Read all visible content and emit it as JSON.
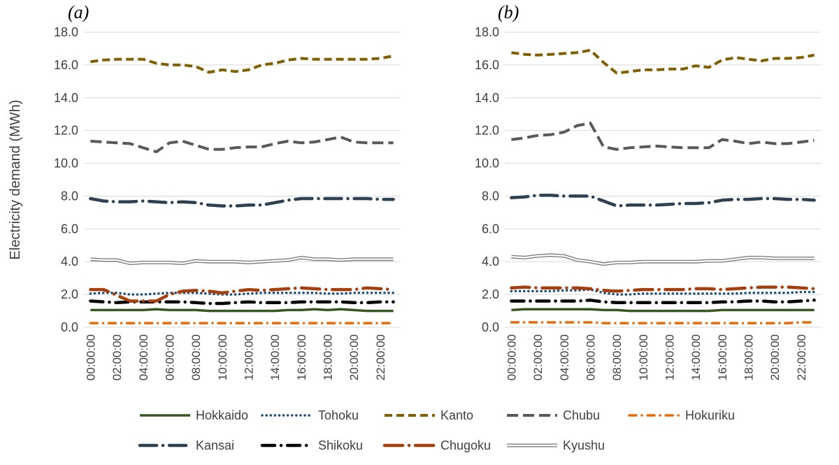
{
  "chart_data": [
    {
      "type": "line",
      "panel_label": "(a)",
      "ylabel": "Electricity demand (MWh)",
      "ylim": [
        0,
        18
      ],
      "y_ticks": [
        "0.0",
        "2.0",
        "4.0",
        "6.0",
        "8.0",
        "10.0",
        "12.0",
        "14.0",
        "16.0",
        "18.0"
      ],
      "x_ticks": [
        "00:00:00",
        "02:00:00",
        "04:00:00",
        "06:00:00",
        "08:00:00",
        "10:00:00",
        "12:00:00",
        "14:00:00",
        "16:00:00",
        "18:00:00",
        "20:00:00",
        "22:00:00"
      ],
      "x": [
        "00:00:00",
        "01:00:00",
        "02:00:00",
        "03:00:00",
        "04:00:00",
        "05:00:00",
        "06:00:00",
        "07:00:00",
        "08:00:00",
        "09:00:00",
        "10:00:00",
        "11:00:00",
        "12:00:00",
        "13:00:00",
        "14:00:00",
        "15:00:00",
        "16:00:00",
        "17:00:00",
        "18:00:00",
        "19:00:00",
        "20:00:00",
        "21:00:00",
        "22:00:00",
        "23:00:00"
      ],
      "grid": true,
      "series": [
        {
          "name": "Hokkaido",
          "values": [
            1.05,
            1.05,
            1.05,
            1.05,
            1.05,
            1.1,
            1.05,
            1.05,
            1.05,
            1.0,
            1.0,
            1.0,
            1.0,
            1.0,
            1.0,
            1.05,
            1.05,
            1.1,
            1.05,
            1.1,
            1.05,
            1.0,
            1.0,
            1.0
          ]
        },
        {
          "name": "Tohoku",
          "values": [
            2.05,
            2.1,
            2.1,
            2.0,
            2.0,
            2.05,
            2.1,
            2.1,
            2.1,
            2.05,
            2.0,
            2.0,
            2.05,
            2.1,
            2.1,
            2.1,
            2.1,
            2.1,
            2.05,
            2.05,
            2.1,
            2.1,
            2.1,
            2.1
          ]
        },
        {
          "name": "Kanto",
          "values": [
            16.2,
            16.3,
            16.35,
            16.35,
            16.35,
            16.1,
            16.0,
            16.0,
            15.9,
            15.55,
            15.7,
            15.6,
            15.7,
            16.0,
            16.1,
            16.3,
            16.4,
            16.35,
            16.35,
            16.35,
            16.35,
            16.35,
            16.4,
            16.55
          ]
        },
        {
          "name": "Chubu",
          "values": [
            11.35,
            11.3,
            11.25,
            11.2,
            10.95,
            10.7,
            11.25,
            11.35,
            11.1,
            10.85,
            10.85,
            10.95,
            11.0,
            11.0,
            11.2,
            11.35,
            11.25,
            11.3,
            11.45,
            11.6,
            11.3,
            11.25,
            11.25,
            11.25
          ]
        },
        {
          "name": "Hokuriku",
          "values": [
            0.25,
            0.25,
            0.25,
            0.25,
            0.25,
            0.25,
            0.25,
            0.25,
            0.25,
            0.25,
            0.25,
            0.25,
            0.25,
            0.25,
            0.25,
            0.25,
            0.25,
            0.25,
            0.25,
            0.25,
            0.25,
            0.25,
            0.25,
            0.25
          ]
        },
        {
          "name": "Kansai",
          "values": [
            7.85,
            7.7,
            7.65,
            7.65,
            7.7,
            7.65,
            7.6,
            7.65,
            7.6,
            7.45,
            7.4,
            7.4,
            7.45,
            7.45,
            7.6,
            7.75,
            7.85,
            7.85,
            7.85,
            7.85,
            7.85,
            7.85,
            7.8,
            7.8
          ]
        },
        {
          "name": "Shikoku",
          "values": [
            1.6,
            1.55,
            1.5,
            1.55,
            1.55,
            1.55,
            1.55,
            1.55,
            1.5,
            1.45,
            1.45,
            1.5,
            1.55,
            1.5,
            1.5,
            1.5,
            1.55,
            1.55,
            1.55,
            1.55,
            1.5,
            1.5,
            1.55,
            1.55
          ]
        },
        {
          "name": "Chugoku",
          "values": [
            2.3,
            2.3,
            1.95,
            1.6,
            1.6,
            1.6,
            2.0,
            2.2,
            2.25,
            2.2,
            2.1,
            2.2,
            2.3,
            2.25,
            2.3,
            2.35,
            2.4,
            2.35,
            2.3,
            2.3,
            2.3,
            2.4,
            2.35,
            2.3
          ]
        },
        {
          "name": "Kyushu",
          "values": [
            4.15,
            4.1,
            4.1,
            3.9,
            3.95,
            3.95,
            3.95,
            3.9,
            4.05,
            4.0,
            4.0,
            4.0,
            3.95,
            4.0,
            4.05,
            4.1,
            4.25,
            4.15,
            4.15,
            4.1,
            4.15,
            4.15,
            4.15,
            4.15
          ]
        }
      ]
    },
    {
      "type": "line",
      "panel_label": "(b)",
      "ylabel": "Electricity demand (MWh)",
      "ylim": [
        0,
        18
      ],
      "y_ticks": [
        "0.0",
        "2.0",
        "4.0",
        "6.0",
        "8.0",
        "10.0",
        "12.0",
        "14.0",
        "16.0",
        "18.0"
      ],
      "x_ticks": [
        "00:00:00",
        "02:00:00",
        "04:00:00",
        "06:00:00",
        "08:00:00",
        "10:00:00",
        "12:00:00",
        "14:00:00",
        "16:00:00",
        "18:00:00",
        "20:00:00",
        "22:00:00"
      ],
      "x": [
        "00:00:00",
        "01:00:00",
        "02:00:00",
        "03:00:00",
        "04:00:00",
        "05:00:00",
        "06:00:00",
        "07:00:00",
        "08:00:00",
        "09:00:00",
        "10:00:00",
        "11:00:00",
        "12:00:00",
        "13:00:00",
        "14:00:00",
        "15:00:00",
        "16:00:00",
        "17:00:00",
        "18:00:00",
        "19:00:00",
        "20:00:00",
        "21:00:00",
        "22:00:00",
        "23:00:00"
      ],
      "grid": true,
      "series": [
        {
          "name": "Hokkaido",
          "values": [
            1.05,
            1.1,
            1.1,
            1.1,
            1.1,
            1.1,
            1.1,
            1.05,
            1.05,
            1.0,
            1.0,
            1.0,
            1.0,
            1.0,
            1.0,
            1.0,
            1.05,
            1.05,
            1.05,
            1.05,
            1.05,
            1.05,
            1.05,
            1.05
          ]
        },
        {
          "name": "Tohoku",
          "values": [
            2.2,
            2.2,
            2.2,
            2.2,
            2.25,
            2.25,
            2.3,
            2.1,
            2.0,
            2.0,
            2.05,
            2.05,
            2.05,
            2.05,
            2.05,
            2.05,
            2.05,
            2.05,
            2.1,
            2.1,
            2.1,
            2.1,
            2.15,
            2.15
          ]
        },
        {
          "name": "Kanto",
          "values": [
            16.75,
            16.65,
            16.6,
            16.65,
            16.7,
            16.75,
            16.9,
            16.15,
            15.5,
            15.6,
            15.7,
            15.7,
            15.75,
            15.75,
            15.95,
            15.85,
            16.3,
            16.45,
            16.35,
            16.25,
            16.4,
            16.4,
            16.45,
            16.6
          ]
        },
        {
          "name": "Chubu",
          "values": [
            11.45,
            11.55,
            11.7,
            11.75,
            11.9,
            12.3,
            12.45,
            11.0,
            10.85,
            10.95,
            11.0,
            11.05,
            11.0,
            10.95,
            10.95,
            10.95,
            11.45,
            11.35,
            11.2,
            11.3,
            11.2,
            11.2,
            11.3,
            11.4
          ]
        },
        {
          "name": "Hokuriku",
          "values": [
            0.3,
            0.3,
            0.3,
            0.3,
            0.3,
            0.3,
            0.3,
            0.25,
            0.25,
            0.25,
            0.25,
            0.25,
            0.25,
            0.25,
            0.25,
            0.25,
            0.25,
            0.25,
            0.25,
            0.25,
            0.25,
            0.25,
            0.3,
            0.3
          ]
        },
        {
          "name": "Kansai",
          "values": [
            7.9,
            7.95,
            8.05,
            8.05,
            8.0,
            8.0,
            8.0,
            7.7,
            7.4,
            7.45,
            7.45,
            7.45,
            7.5,
            7.55,
            7.55,
            7.6,
            7.75,
            7.8,
            7.8,
            7.85,
            7.85,
            7.8,
            7.8,
            7.75
          ]
        },
        {
          "name": "Shikoku",
          "values": [
            1.6,
            1.6,
            1.6,
            1.6,
            1.6,
            1.6,
            1.65,
            1.55,
            1.5,
            1.5,
            1.5,
            1.5,
            1.5,
            1.5,
            1.5,
            1.5,
            1.55,
            1.55,
            1.6,
            1.6,
            1.55,
            1.55,
            1.6,
            1.65
          ]
        },
        {
          "name": "Chugoku",
          "values": [
            2.4,
            2.45,
            2.4,
            2.4,
            2.4,
            2.4,
            2.35,
            2.25,
            2.2,
            2.25,
            2.3,
            2.3,
            2.3,
            2.3,
            2.35,
            2.35,
            2.3,
            2.35,
            2.4,
            2.45,
            2.45,
            2.45,
            2.4,
            2.35
          ]
        },
        {
          "name": "Kyushu",
          "values": [
            4.3,
            4.25,
            4.35,
            4.4,
            4.35,
            4.1,
            4.0,
            3.85,
            3.95,
            3.95,
            4.0,
            4.0,
            4.0,
            4.0,
            4.0,
            4.05,
            4.05,
            4.15,
            4.25,
            4.25,
            4.2,
            4.2,
            4.2,
            4.2
          ]
        }
      ]
    }
  ],
  "legend": {
    "placement": "bottom",
    "entries": [
      {
        "name": "Hokkaido",
        "color": "#375623"
      },
      {
        "name": "Tohoku",
        "color": "#1f4e79"
      },
      {
        "name": "Kanto",
        "color": "#7f6000"
      },
      {
        "name": "Chubu",
        "color": "#595959"
      },
      {
        "name": "Hokuriku",
        "color": "#e46c0a"
      },
      {
        "name": "Kansai",
        "color": "#2f4050"
      },
      {
        "name": "Shikoku",
        "color": "#000000"
      },
      {
        "name": "Chugoku",
        "color": "#a5400e"
      },
      {
        "name": "Kyushu",
        "color": "#7f7f7f"
      }
    ]
  }
}
